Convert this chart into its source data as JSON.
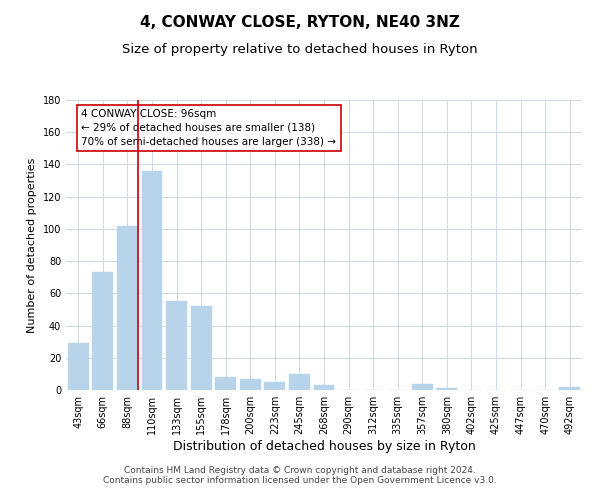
{
  "title": "4, CONWAY CLOSE, RYTON, NE40 3NZ",
  "subtitle": "Size of property relative to detached houses in Ryton",
  "xlabel": "Distribution of detached houses by size in Ryton",
  "ylabel": "Number of detached properties",
  "bar_labels": [
    "43sqm",
    "66sqm",
    "88sqm",
    "110sqm",
    "133sqm",
    "155sqm",
    "178sqm",
    "200sqm",
    "223sqm",
    "245sqm",
    "268sqm",
    "290sqm",
    "312sqm",
    "335sqm",
    "357sqm",
    "380sqm",
    "402sqm",
    "425sqm",
    "447sqm",
    "470sqm",
    "492sqm"
  ],
  "bar_values": [
    29,
    73,
    102,
    136,
    55,
    52,
    8,
    7,
    5,
    10,
    3,
    0,
    0,
    0,
    4,
    1,
    0,
    0,
    0,
    0,
    2
  ],
  "bar_color": "#b8d4ea",
  "bar_edge_color": "#b8d4ea",
  "vline_color": "#cc0000",
  "vline_x": 2.43,
  "ylim": [
    0,
    180
  ],
  "yticks": [
    0,
    20,
    40,
    60,
    80,
    100,
    120,
    140,
    160,
    180
  ],
  "annotation_title": "4 CONWAY CLOSE: 96sqm",
  "annotation_line1": "← 29% of detached houses are smaller (138)",
  "annotation_line2": "70% of semi-detached houses are larger (338) →",
  "annotation_box_color": "#ffffff",
  "annotation_box_edgecolor": "#cc0000",
  "footer_line1": "Contains HM Land Registry data © Crown copyright and database right 2024.",
  "footer_line2": "Contains public sector information licensed under the Open Government Licence v3.0.",
  "background_color": "#ffffff",
  "grid_color": "#ccd9e8",
  "title_fontsize": 11,
  "subtitle_fontsize": 9.5,
  "xlabel_fontsize": 9,
  "ylabel_fontsize": 8,
  "tick_fontsize": 7,
  "footer_fontsize": 6.5
}
